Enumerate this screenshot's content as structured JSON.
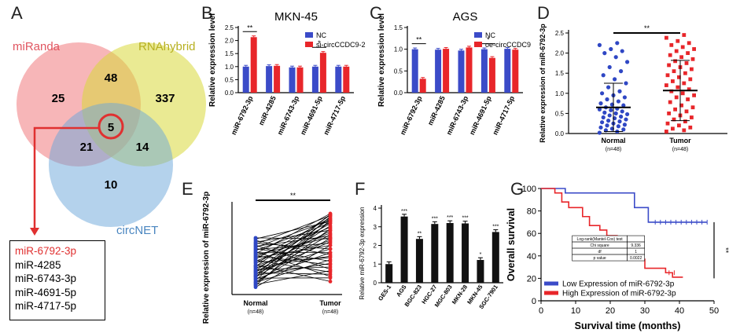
{
  "panels": {
    "A": "A",
    "B": "B",
    "C": "C",
    "D": "D",
    "E": "E",
    "F": "F",
    "G": "G"
  },
  "venn": {
    "sets": [
      {
        "name": "miRanda",
        "color": "#f07a7e"
      },
      {
        "name": "RNAhybrid",
        "color": "#cccc3a"
      },
      {
        "name": "circNET",
        "color": "#5b9bd5"
      }
    ],
    "regions": {
      "miRanda_only": "25",
      "miRanda_RNAhybrid": "48",
      "RNAhybrid_only": "337",
      "all_three": "5",
      "miRanda_circNET": "21",
      "RNAhybrid_circNET": "14",
      "circNET_only": "10"
    },
    "list": [
      "miR-6792-3p",
      "miR-4285",
      "miR-6743-3p",
      "miR-4691-5p",
      "miR-4717-5p"
    ],
    "highlight_color": "#e03030"
  },
  "chart_data": [
    {
      "id": "B",
      "type": "bar",
      "title": "MKN-45",
      "ylabel": "Relative expression level",
      "ylim": [
        0,
        2.5
      ],
      "yticks": [
        "0.0",
        "0.5",
        "1.0",
        "1.5",
        "2.0",
        "2.5"
      ],
      "categories": [
        "miR-6792-3p",
        "miR-4285",
        "miR-6743-3p",
        "miR-4691-5p",
        "miR-4717-5p"
      ],
      "series": [
        {
          "name": "NC",
          "color": "#3b4bc8",
          "values": [
            1.0,
            1.02,
            0.97,
            1.0,
            1.0
          ]
        },
        {
          "name": "si-circCCDC9-2",
          "color": "#e8262a",
          "values": [
            2.13,
            1.03,
            0.97,
            1.53,
            1.0
          ]
        }
      ],
      "significance": [
        {
          "index": 0,
          "label": "**"
        },
        {
          "index": 3,
          "label": "*"
        }
      ]
    },
    {
      "id": "C",
      "type": "bar",
      "title": "AGS",
      "ylabel": "Relative expression level",
      "ylim": [
        0,
        1.5
      ],
      "yticks": [
        "0.0",
        "0.5",
        "1.0",
        "1.5"
      ],
      "categories": [
        "miR-6792-3p",
        "miR-4285",
        "miR-6743-3p",
        "miR-4691-5p",
        "miR-4717-5p"
      ],
      "series": [
        {
          "name": "NC",
          "color": "#3b4bc8",
          "values": [
            1.0,
            0.99,
            0.97,
            1.0,
            1.01
          ]
        },
        {
          "name": "oe-circCCDC9",
          "color": "#e8262a",
          "values": [
            0.32,
            1.01,
            1.04,
            0.8,
            0.99
          ]
        }
      ],
      "significance": [
        {
          "index": 0,
          "label": "**"
        },
        {
          "index": 3,
          "label": "*"
        }
      ]
    },
    {
      "id": "D",
      "type": "scatter",
      "ylabel": "Relative expression of miR-6792-3p",
      "ylim": [
        0,
        2.5
      ],
      "yticks": [
        "0.0",
        "0.5",
        "1.0",
        "1.5",
        "2.0",
        "2.5"
      ],
      "categories": [
        "Normal",
        "Tumor"
      ],
      "n_labels": [
        "(n=48)",
        "(n=48)"
      ],
      "means": [
        0.65,
        1.07
      ],
      "sd": [
        0.6,
        0.75
      ],
      "significance": "**",
      "colors": [
        "#2f47c4",
        "#e8262a"
      ]
    },
    {
      "id": "E",
      "type": "line",
      "ylabel": "Relative expression of miR-6792-3p",
      "categories": [
        "Normal",
        "Tumor"
      ],
      "n_labels": [
        "(n=48)",
        "(n=48)"
      ],
      "significance": "**",
      "colors": [
        "#2f47c4",
        "#e8262a"
      ],
      "pairs": [
        [
          0.05,
          0.55
        ],
        [
          0.08,
          0.9
        ],
        [
          0.1,
          0.2
        ],
        [
          0.12,
          0.78
        ],
        [
          0.14,
          0.35
        ],
        [
          0.15,
          0.65
        ],
        [
          0.18,
          0.95
        ],
        [
          0.2,
          0.45
        ],
        [
          0.22,
          0.1
        ],
        [
          0.24,
          0.7
        ],
        [
          0.25,
          0.88
        ],
        [
          0.27,
          0.3
        ],
        [
          0.28,
          0.98
        ],
        [
          0.3,
          0.6
        ],
        [
          0.32,
          0.15
        ],
        [
          0.33,
          0.82
        ],
        [
          0.35,
          0.5
        ],
        [
          0.36,
          0.92
        ],
        [
          0.38,
          0.25
        ],
        [
          0.4,
          0.75
        ],
        [
          0.42,
          0.4
        ],
        [
          0.44,
          0.97
        ],
        [
          0.45,
          0.62
        ],
        [
          0.47,
          0.05
        ],
        [
          0.5,
          0.85
        ],
        [
          0.52,
          0.38
        ],
        [
          0.54,
          0.72
        ],
        [
          0.56,
          0.18
        ],
        [
          0.58,
          0.93
        ],
        [
          0.6,
          0.55
        ],
        [
          0.62,
          0.8
        ],
        [
          0.64,
          0.28
        ],
        [
          0.66,
          0.66
        ],
        [
          0.68,
          0.99
        ],
        [
          0.7,
          0.45
        ],
        [
          0.72,
          0.12
        ],
        [
          0.74,
          0.86
        ],
        [
          0.76,
          0.58
        ],
        [
          0.78,
          0.33
        ],
        [
          0.8,
          0.9
        ],
        [
          0.82,
          0.68
        ],
        [
          0.84,
          0.22
        ],
        [
          0.86,
          0.96
        ],
        [
          0.88,
          0.5
        ],
        [
          0.9,
          0.76
        ],
        [
          0.93,
          0.42
        ],
        [
          0.96,
          0.88
        ],
        [
          0.98,
          0.64
        ]
      ]
    },
    {
      "id": "F",
      "type": "bar",
      "ylabel": "Relative miR-6792-3p expression",
      "ylim": [
        0,
        4
      ],
      "yticks": [
        "0",
        "1",
        "2",
        "3",
        "4"
      ],
      "categories": [
        "GES-1",
        "AGS",
        "BGC-823",
        "HGC-27",
        "MGC-803",
        "MKN-28",
        "MKN-45",
        "SGC-7901"
      ],
      "values": [
        1.0,
        3.55,
        2.35,
        3.15,
        3.2,
        3.18,
        1.22,
        2.72
      ],
      "significance": [
        "",
        "***",
        "**",
        "***",
        "***",
        "***",
        "*",
        "***"
      ],
      "color": "#111111"
    },
    {
      "id": "G",
      "type": "line",
      "xlabel": "Survival time (months)",
      "ylabel": "Overall survival",
      "xlim": [
        0,
        50
      ],
      "ylim": [
        0,
        100
      ],
      "xticks": [
        "0",
        "10",
        "20",
        "30",
        "40",
        "50"
      ],
      "yticks": [
        "0",
        "20",
        "40",
        "60",
        "80",
        "100"
      ],
      "series": [
        {
          "name": "Low Expression of miR-6792-3p",
          "color": "#3b4bc8",
          "points": [
            [
              0,
              100
            ],
            [
              7,
              100
            ],
            [
              7,
              96
            ],
            [
              27,
              96
            ],
            [
              27,
              83
            ],
            [
              31,
              83
            ],
            [
              31,
              70
            ],
            [
              48,
              70
            ]
          ]
        },
        {
          "name": "High Expression of miR-6792-3p",
          "color": "#e8262a",
          "points": [
            [
              0,
              100
            ],
            [
              4,
              100
            ],
            [
              4,
              96
            ],
            [
              6,
              96
            ],
            [
              6,
              88
            ],
            [
              8,
              88
            ],
            [
              8,
              83
            ],
            [
              12,
              83
            ],
            [
              12,
              75
            ],
            [
              14,
              75
            ],
            [
              14,
              67
            ],
            [
              17,
              67
            ],
            [
              17,
              63
            ],
            [
              19,
              63
            ],
            [
              19,
              58
            ],
            [
              22,
              58
            ],
            [
              22,
              50
            ],
            [
              25,
              50
            ],
            [
              25,
              42
            ],
            [
              28,
              42
            ],
            [
              28,
              37
            ],
            [
              30,
              37
            ],
            [
              30,
              29
            ],
            [
              36,
              29
            ],
            [
              36,
              25
            ],
            [
              38,
              25
            ],
            [
              38,
              21
            ],
            [
              41,
              21
            ],
            [
              41,
              21
            ]
          ]
        }
      ],
      "significance": "**",
      "stats_table": [
        [
          "Log-rank(Mantel-Cox) test",
          ""
        ],
        [
          "Chi square",
          "9.336"
        ],
        [
          "df",
          "1"
        ],
        [
          "p value",
          "0.0022"
        ]
      ]
    }
  ]
}
